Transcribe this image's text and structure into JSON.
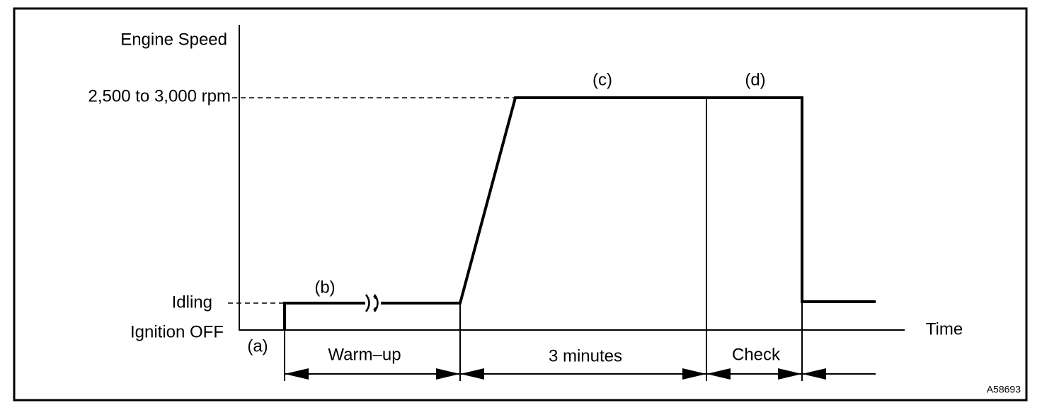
{
  "axes": {
    "y_label": "Engine Speed",
    "x_label": "Time",
    "levels": [
      "2,500 to 3,000 rpm",
      "Idling",
      "Ignition OFF"
    ]
  },
  "points": [
    "(a)",
    "(b)",
    "(c)",
    "(d)"
  ],
  "intervals": [
    "Warm–up",
    "3 minutes",
    "Check"
  ],
  "figure_id": "A58693"
}
